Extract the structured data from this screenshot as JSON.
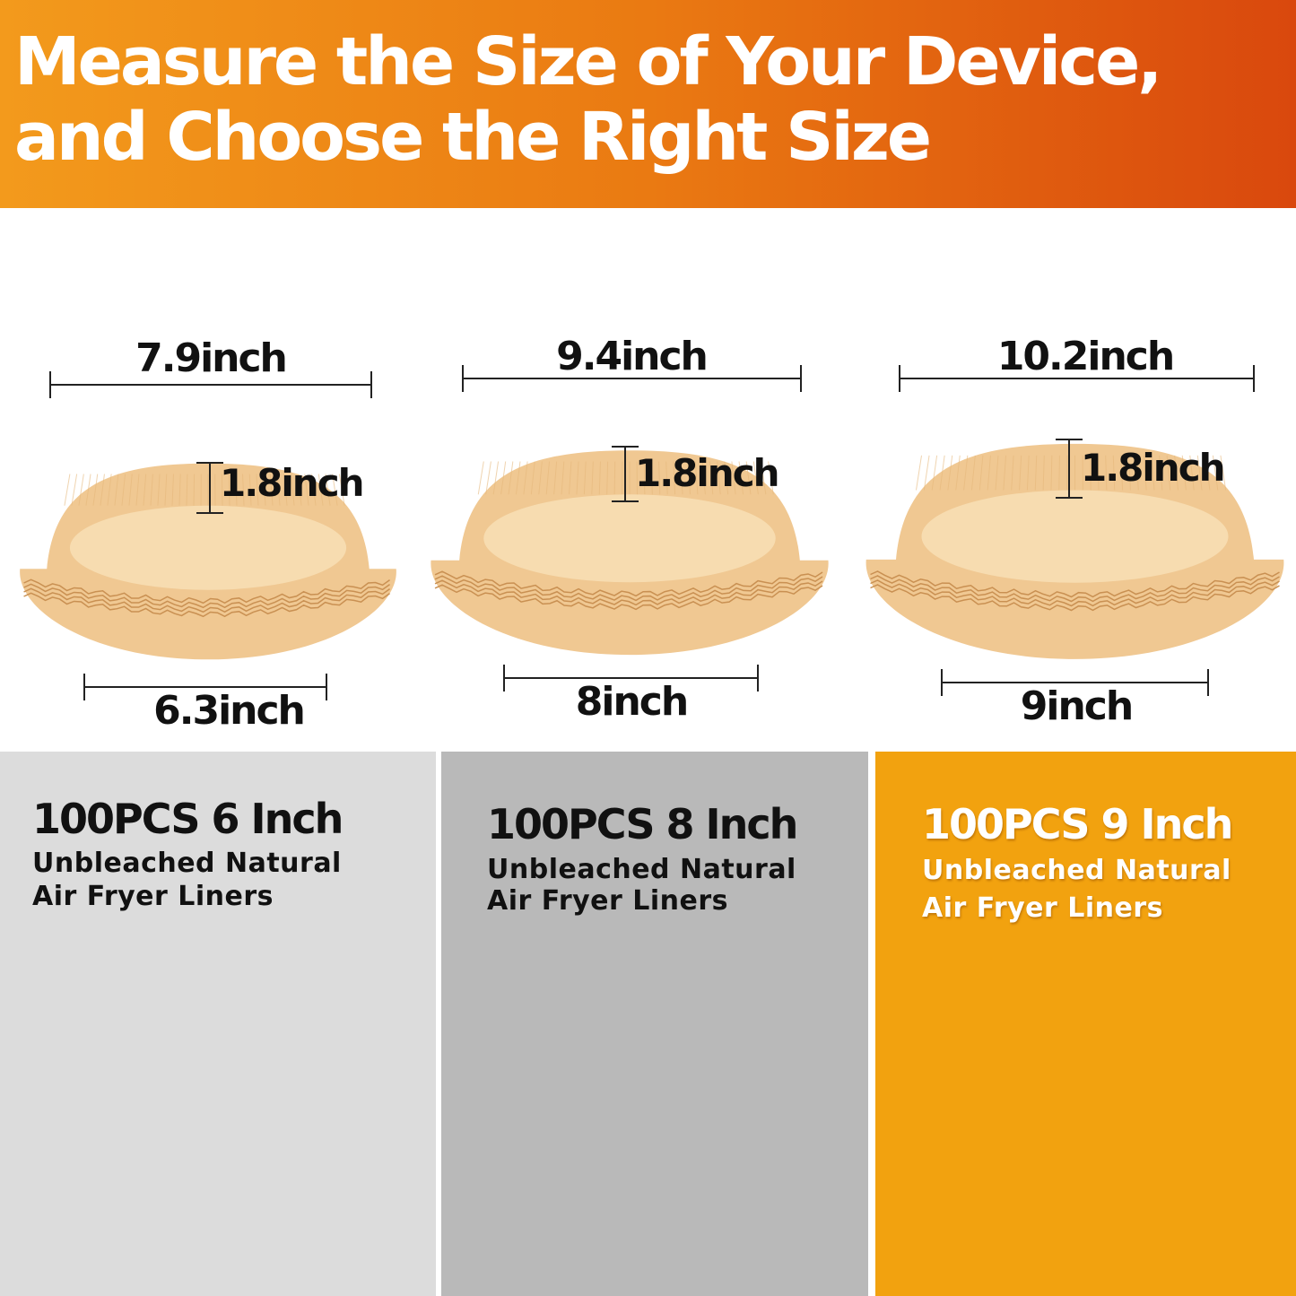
{
  "header": {
    "line1": "Measure the Size of Your Device,",
    "line2": "and Choose the Right Size"
  },
  "colors": {
    "header_start": "#f39a1c",
    "header_end": "#d9480d",
    "panel_small": "#dcdcdc",
    "panel_medium": "#b9b9b9",
    "panel_large": "#f2a20f",
    "liner": "#f0c892"
  },
  "products": [
    {
      "top_width": "7.9inch",
      "height": "1.8inch",
      "bottom_width": "6.3inch",
      "title": "100PCS 6 Inch",
      "subtitle1": "Unbleached Natural",
      "subtitle2": "Air Fryer Liners"
    },
    {
      "top_width": "9.4inch",
      "height": "1.8inch",
      "bottom_width": "8inch",
      "title": "100PCS 8 Inch",
      "subtitle1": "Unbleached Natural",
      "subtitle2": "Air Fryer Liners"
    },
    {
      "top_width": "10.2inch",
      "height": "1.8inch",
      "bottom_width": "9inch",
      "title": "100PCS 9 Inch",
      "subtitle1": "Unbleached Natural",
      "subtitle2": "Air Fryer Liners"
    }
  ]
}
